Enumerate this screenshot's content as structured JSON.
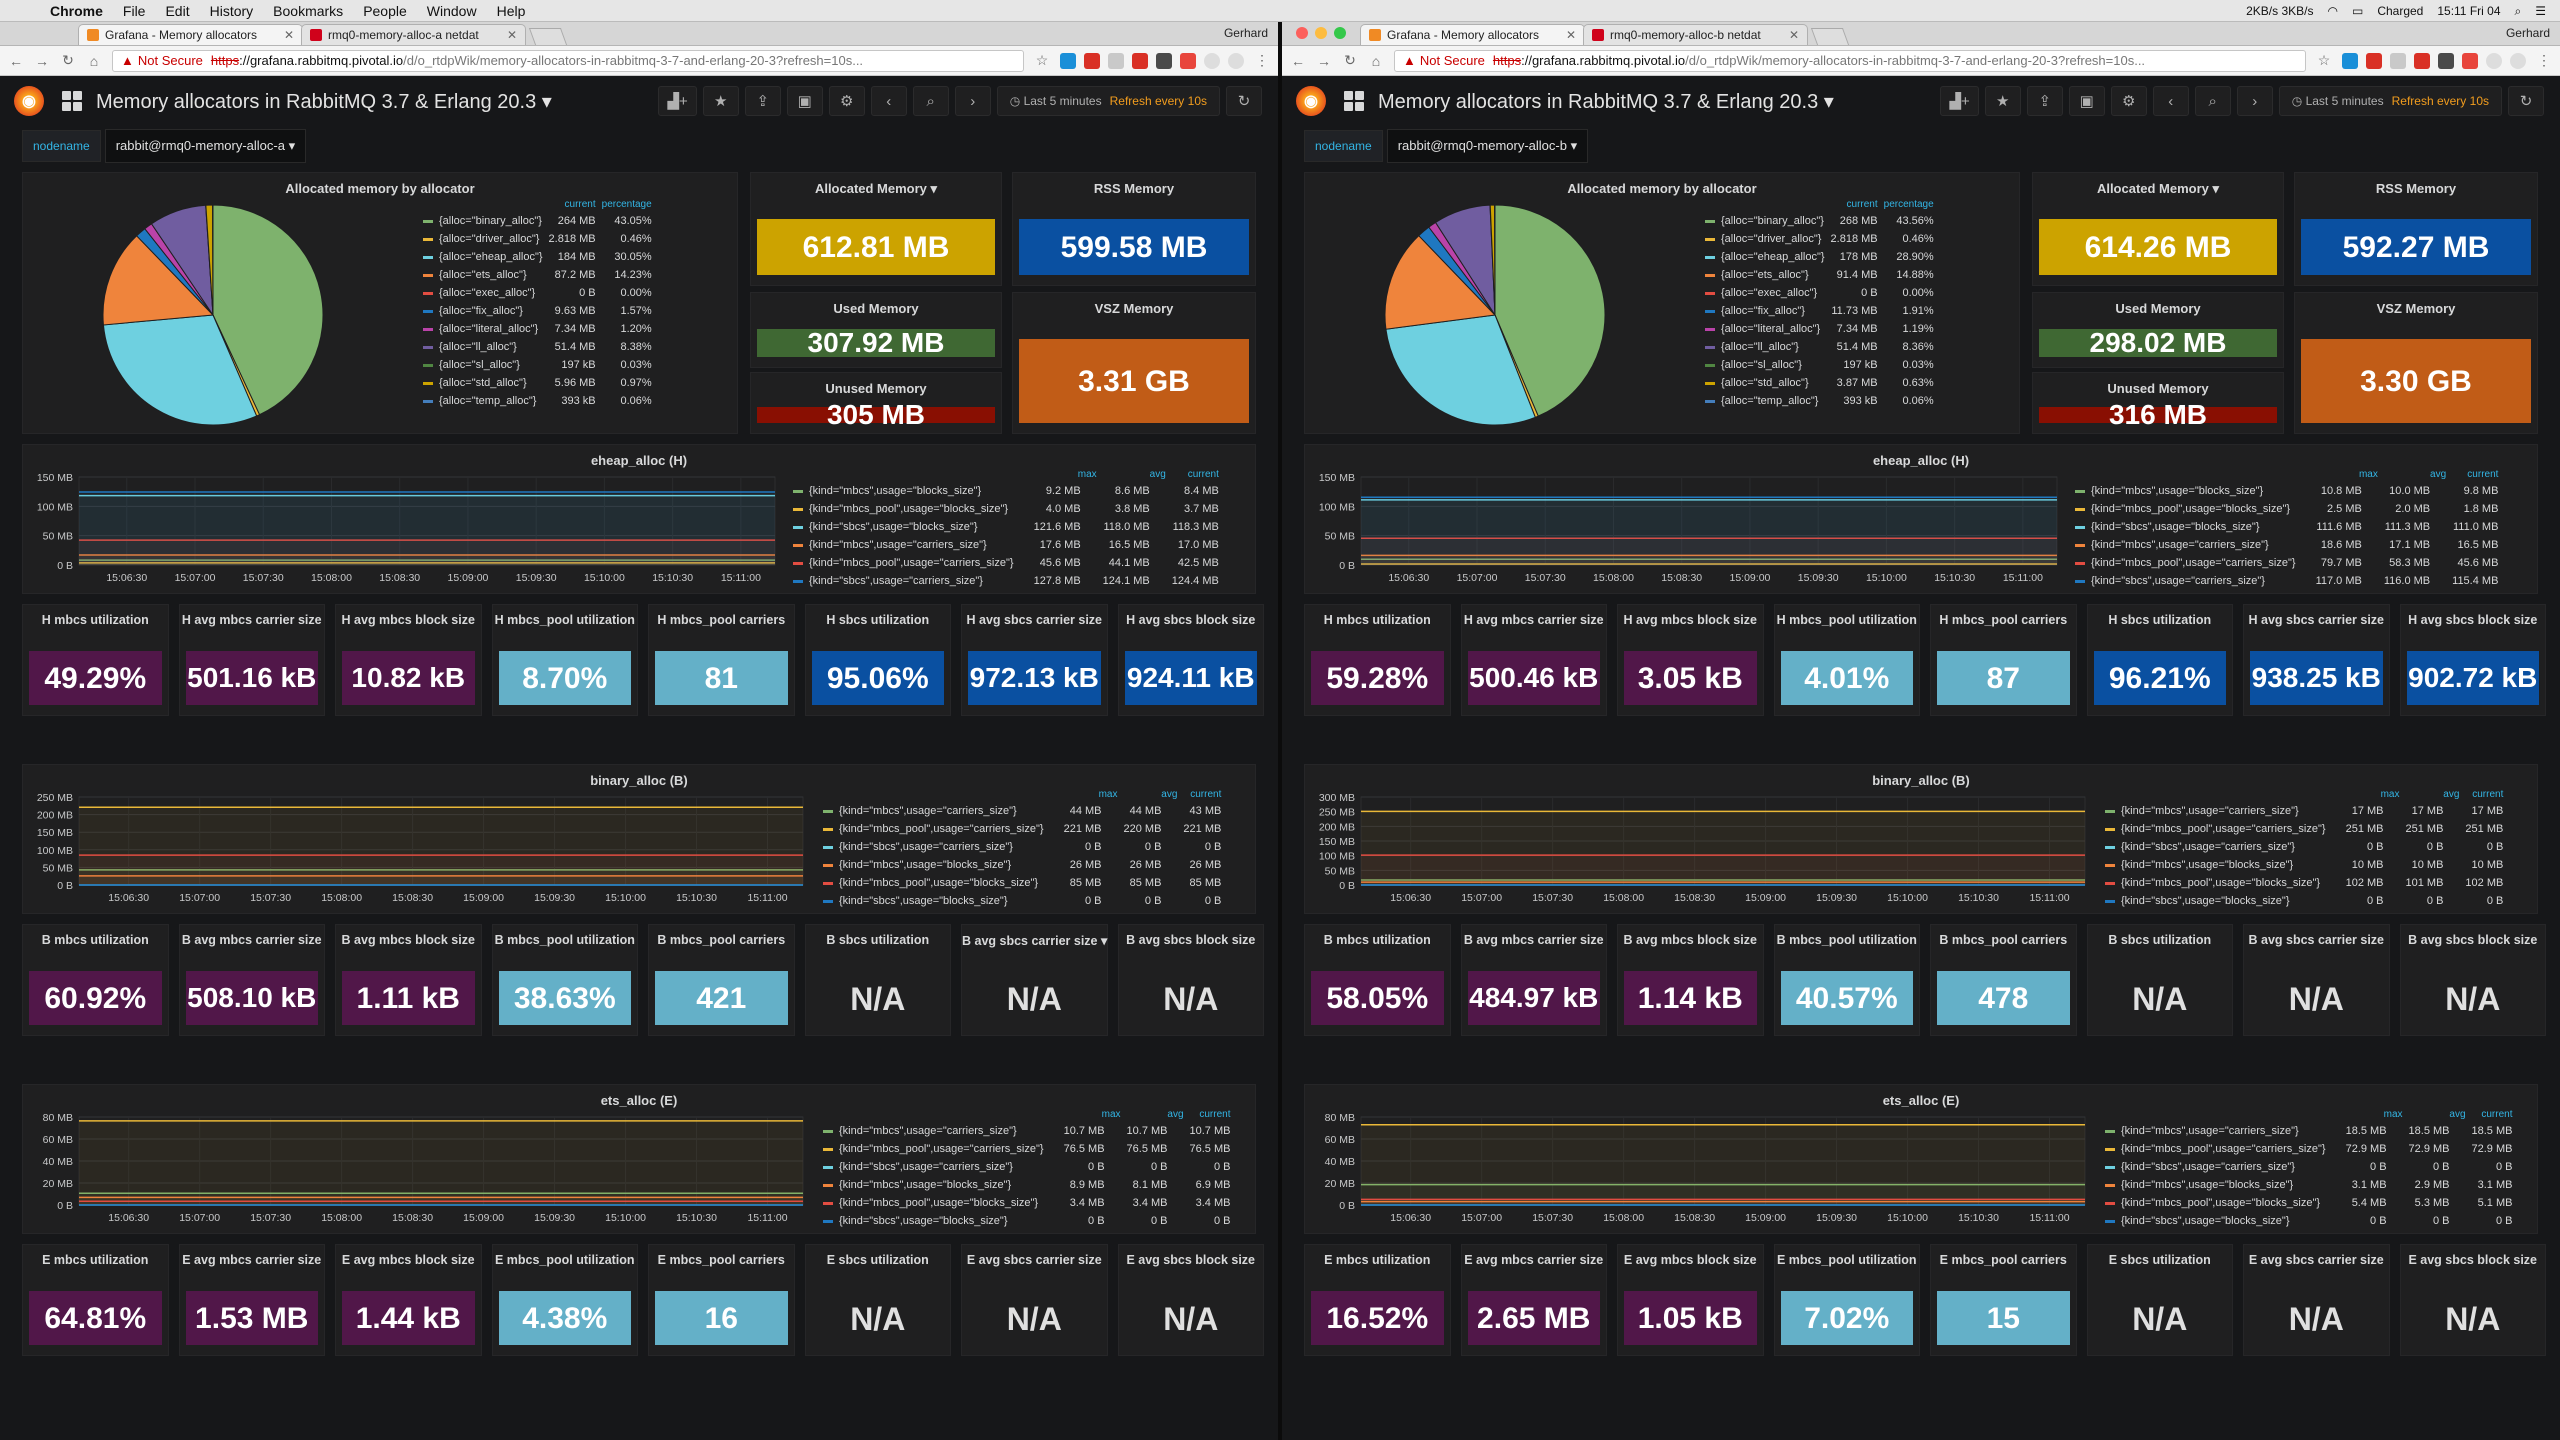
{
  "menubar": {
    "apple": "",
    "items": [
      "Chrome",
      "File",
      "Edit",
      "History",
      "Bookmarks",
      "People",
      "Window",
      "Help"
    ],
    "status": [
      "2KB/s 3KB/s",
      "Charged",
      "15:11 Fri 04"
    ]
  },
  "browser": {
    "ns": "Not Secure",
    "scheme": "https",
    "host": "://grafana.rabbitmq.pivotal.io",
    "path": "/d/o_rtdpWik/memory-allocators-in-rabbitmq-3-7-and-erlang-20-3?refresh=10s...",
    "user": "Gerhard"
  },
  "dashboard": {
    "title": "Memory allocators in RabbitMQ 3.7 & Erlang 20.3 ▾",
    "range": "Last 5 minutes",
    "refresh": "Refresh every 10s",
    "var_label": "nodename",
    "times": [
      "15:06:30",
      "15:07:00",
      "15:07:30",
      "15:08:00",
      "15:08:30",
      "15:09:00",
      "15:09:30",
      "15:10:00",
      "15:10:30",
      "15:11:00"
    ]
  },
  "colors": {
    "green": "#7eb26d",
    "yellow": "#eab839",
    "cyan": "#6ed0e0",
    "orange": "#ef843c",
    "red": "#e24d42",
    "blue": "#1f78c1",
    "purple": "#ba43a9",
    "dpurple": "#705da0",
    "statYellow": "#cca300",
    "statBlue": "#0a50a1",
    "statGreen": "#3f6833",
    "statOrange": "#c15c17",
    "statRed": "#890f02",
    "statPurple": "#511749",
    "statCyan": "#64b0c8"
  },
  "titles": {
    "pie": "Allocated memory by allocator",
    "alloc": "Allocated Memory ▾",
    "rss": "RSS Memory",
    "used": "Used Memory",
    "vsz": "VSZ Memory",
    "unused": "Unused Memory",
    "eheap": "eheap_alloc (H)",
    "binary": "binary_alloc (B)",
    "ets": "ets_alloc (E)",
    "lg_max": "max",
    "lg_avg": "avg",
    "lg_cur": "current",
    "pie_cur": "current",
    "pie_pct": "percentage"
  },
  "win": [
    {
      "tab1": "Grafana - Memory allocators",
      "tab2": "rmq0-memory-alloc-a netdat",
      "node": "rabbit@rmq0-memory-alloc-a ▾",
      "pie": [
        [
          "{alloc=\"binary_alloc\"}",
          "264 MB",
          "43.05%"
        ],
        [
          "{alloc=\"driver_alloc\"}",
          "2.818 MB",
          "0.46%"
        ],
        [
          "{alloc=\"eheap_alloc\"}",
          "184 MB",
          "30.05%"
        ],
        [
          "{alloc=\"ets_alloc\"}",
          "87.2 MB",
          "14.23%"
        ],
        [
          "{alloc=\"exec_alloc\"}",
          "0 B",
          "0.00%"
        ],
        [
          "{alloc=\"fix_alloc\"}",
          "9.63 MB",
          "1.57%"
        ],
        [
          "{alloc=\"literal_alloc\"}",
          "7.34 MB",
          "1.20%"
        ],
        [
          "{alloc=\"ll_alloc\"}",
          "51.4 MB",
          "8.38%"
        ],
        [
          "{alloc=\"sl_alloc\"}",
          "197 kB",
          "0.03%"
        ],
        [
          "{alloc=\"std_alloc\"}",
          "5.96 MB",
          "0.97%"
        ],
        [
          "{alloc=\"temp_alloc\"}",
          "393 kB",
          "0.06%"
        ]
      ],
      "stats": {
        "alloc": "612.81 MB",
        "rss": "599.58 MB",
        "used": "307.92 MB",
        "vsz": "3.31 GB",
        "unused": "305 MB"
      },
      "eheap": {
        "yt": [
          "150 MB",
          "100 MB",
          "50 MB",
          "0 B"
        ],
        "ymax": 150,
        "lg": [
          [
            "{kind=\"mbcs\",usage=\"blocks_size\"}",
            "9.2 MB",
            "8.6 MB",
            "8.4 MB"
          ],
          [
            "{kind=\"mbcs_pool\",usage=\"blocks_size\"}",
            "4.0 MB",
            "3.8 MB",
            "3.7 MB"
          ],
          [
            "{kind=\"sbcs\",usage=\"blocks_size\"}",
            "121.6 MB",
            "118.0 MB",
            "118.3 MB"
          ],
          [
            "{kind=\"mbcs\",usage=\"carriers_size\"}",
            "17.6 MB",
            "16.5 MB",
            "17.0 MB"
          ],
          [
            "{kind=\"mbcs_pool\",usage=\"carriers_size\"}",
            "45.6 MB",
            "44.1 MB",
            "42.5 MB"
          ],
          [
            "{kind=\"sbcs\",usage=\"carriers_size\"}",
            "127.8 MB",
            "124.1 MB",
            "124.4 MB"
          ]
        ]
      },
      "hstats": [
        [
          "H mbcs utilization",
          "49.29%"
        ],
        [
          "H avg mbcs carrier size",
          "501.16 kB"
        ],
        [
          "H avg mbcs block size",
          "10.82 kB"
        ],
        [
          "H mbcs_pool utilization",
          "8.70%"
        ],
        [
          "H mbcs_pool carriers",
          "81"
        ],
        [
          "H sbcs utilization",
          "95.06%"
        ],
        [
          "H avg sbcs carrier size",
          "972.13 kB"
        ],
        [
          "H avg sbcs block size",
          "924.11 kB"
        ]
      ],
      "binary": {
        "yt": [
          "250 MB",
          "200 MB",
          "150 MB",
          "100 MB",
          "50 MB",
          "0 B"
        ],
        "ymax": 250,
        "lg": [
          [
            "{kind=\"mbcs\",usage=\"carriers_size\"}",
            "44 MB",
            "44 MB",
            "43 MB"
          ],
          [
            "{kind=\"mbcs_pool\",usage=\"carriers_size\"}",
            "221 MB",
            "220 MB",
            "221 MB"
          ],
          [
            "{kind=\"sbcs\",usage=\"carriers_size\"}",
            "0 B",
            "0 B",
            "0 B"
          ],
          [
            "{kind=\"mbcs\",usage=\"blocks_size\"}",
            "26 MB",
            "26 MB",
            "26 MB"
          ],
          [
            "{kind=\"mbcs_pool\",usage=\"blocks_size\"}",
            "85 MB",
            "85 MB",
            "85 MB"
          ],
          [
            "{kind=\"sbcs\",usage=\"blocks_size\"}",
            "0 B",
            "0 B",
            "0 B"
          ]
        ]
      },
      "bstats": [
        [
          "B mbcs utilization",
          "60.92%"
        ],
        [
          "B avg mbcs carrier size",
          "508.10 kB"
        ],
        [
          "B avg mbcs block size",
          "1.11 kB"
        ],
        [
          "B mbcs_pool utilization",
          "38.63%"
        ],
        [
          "B mbcs_pool carriers",
          "421"
        ],
        [
          "B sbcs utilization",
          "N/A"
        ],
        [
          "B avg sbcs carrier size ▾",
          "N/A"
        ],
        [
          "B avg sbcs block size",
          "N/A"
        ]
      ],
      "ets": {
        "yt": [
          "80 MB",
          "60 MB",
          "40 MB",
          "20 MB",
          "0 B"
        ],
        "ymax": 80,
        "lg": [
          [
            "{kind=\"mbcs\",usage=\"carriers_size\"}",
            "10.7 MB",
            "10.7 MB",
            "10.7 MB"
          ],
          [
            "{kind=\"mbcs_pool\",usage=\"carriers_size\"}",
            "76.5 MB",
            "76.5 MB",
            "76.5 MB"
          ],
          [
            "{kind=\"sbcs\",usage=\"carriers_size\"}",
            "0 B",
            "0 B",
            "0 B"
          ],
          [
            "{kind=\"mbcs\",usage=\"blocks_size\"}",
            "8.9 MB",
            "8.1 MB",
            "6.9 MB"
          ],
          [
            "{kind=\"mbcs_pool\",usage=\"blocks_size\"}",
            "3.4 MB",
            "3.4 MB",
            "3.4 MB"
          ],
          [
            "{kind=\"sbcs\",usage=\"blocks_size\"}",
            "0 B",
            "0 B",
            "0 B"
          ]
        ]
      },
      "estats": [
        [
          "E mbcs utilization",
          "64.81%"
        ],
        [
          "E avg mbcs carrier size",
          "1.53 MB"
        ],
        [
          "E avg mbcs block size",
          "1.44 kB"
        ],
        [
          "E mbcs_pool utilization",
          "4.38%"
        ],
        [
          "E mbcs_pool carriers",
          "16"
        ],
        [
          "E sbcs utilization",
          "N/A"
        ],
        [
          "E avg sbcs carrier size",
          "N/A"
        ],
        [
          "E avg sbcs block size",
          "N/A"
        ]
      ]
    },
    {
      "tab1": "Grafana - Memory allocators",
      "tab2": "rmq0-memory-alloc-b netdat",
      "node": "rabbit@rmq0-memory-alloc-b ▾",
      "pie": [
        [
          "{alloc=\"binary_alloc\"}",
          "268 MB",
          "43.56%"
        ],
        [
          "{alloc=\"driver_alloc\"}",
          "2.818 MB",
          "0.46%"
        ],
        [
          "{alloc=\"eheap_alloc\"}",
          "178 MB",
          "28.90%"
        ],
        [
          "{alloc=\"ets_alloc\"}",
          "91.4 MB",
          "14.88%"
        ],
        [
          "{alloc=\"exec_alloc\"}",
          "0 B",
          "0.00%"
        ],
        [
          "{alloc=\"fix_alloc\"}",
          "11.73 MB",
          "1.91%"
        ],
        [
          "{alloc=\"literal_alloc\"}",
          "7.34 MB",
          "1.19%"
        ],
        [
          "{alloc=\"ll_alloc\"}",
          "51.4 MB",
          "8.36%"
        ],
        [
          "{alloc=\"sl_alloc\"}",
          "197 kB",
          "0.03%"
        ],
        [
          "{alloc=\"std_alloc\"}",
          "3.87 MB",
          "0.63%"
        ],
        [
          "{alloc=\"temp_alloc\"}",
          "393 kB",
          "0.06%"
        ]
      ],
      "stats": {
        "alloc": "614.26 MB",
        "rss": "592.27 MB",
        "used": "298.02 MB",
        "vsz": "3.30 GB",
        "unused": "316 MB"
      },
      "eheap": {
        "yt": [
          "150 MB",
          "100 MB",
          "50 MB",
          "0 B"
        ],
        "ymax": 150,
        "lg": [
          [
            "{kind=\"mbcs\",usage=\"blocks_size\"}",
            "10.8 MB",
            "10.0 MB",
            "9.8 MB"
          ],
          [
            "{kind=\"mbcs_pool\",usage=\"blocks_size\"}",
            "2.5 MB",
            "2.0 MB",
            "1.8 MB"
          ],
          [
            "{kind=\"sbcs\",usage=\"blocks_size\"}",
            "111.6 MB",
            "111.3 MB",
            "111.0 MB"
          ],
          [
            "{kind=\"mbcs\",usage=\"carriers_size\"}",
            "18.6 MB",
            "17.1 MB",
            "16.5 MB"
          ],
          [
            "{kind=\"mbcs_pool\",usage=\"carriers_size\"}",
            "79.7 MB",
            "58.3 MB",
            "45.6 MB"
          ],
          [
            "{kind=\"sbcs\",usage=\"carriers_size\"}",
            "117.0 MB",
            "116.0 MB",
            "115.4 MB"
          ]
        ]
      },
      "hstats": [
        [
          "H mbcs utilization",
          "59.28%"
        ],
        [
          "H avg mbcs carrier size",
          "500.46 kB"
        ],
        [
          "H avg mbcs block size",
          "3.05 kB"
        ],
        [
          "H mbcs_pool utilization",
          "4.01%"
        ],
        [
          "H mbcs_pool carriers",
          "87"
        ],
        [
          "H sbcs utilization",
          "96.21%"
        ],
        [
          "H avg sbcs carrier size",
          "938.25 kB"
        ],
        [
          "H avg sbcs block size",
          "902.72 kB"
        ]
      ],
      "binary": {
        "yt": [
          "300 MB",
          "250 MB",
          "200 MB",
          "150 MB",
          "100 MB",
          "50 MB",
          "0 B"
        ],
        "ymax": 300,
        "lg": [
          [
            "{kind=\"mbcs\",usage=\"carriers_size\"}",
            "17 MB",
            "17 MB",
            "17 MB"
          ],
          [
            "{kind=\"mbcs_pool\",usage=\"carriers_size\"}",
            "251 MB",
            "251 MB",
            "251 MB"
          ],
          [
            "{kind=\"sbcs\",usage=\"carriers_size\"}",
            "0 B",
            "0 B",
            "0 B"
          ],
          [
            "{kind=\"mbcs\",usage=\"blocks_size\"}",
            "10 MB",
            "10 MB",
            "10 MB"
          ],
          [
            "{kind=\"mbcs_pool\",usage=\"blocks_size\"}",
            "102 MB",
            "101 MB",
            "102 MB"
          ],
          [
            "{kind=\"sbcs\",usage=\"blocks_size\"}",
            "0 B",
            "0 B",
            "0 B"
          ]
        ]
      },
      "bstats": [
        [
          "B mbcs utilization",
          "58.05%"
        ],
        [
          "B avg mbcs carrier size",
          "484.97 kB"
        ],
        [
          "B avg mbcs block size",
          "1.14 kB"
        ],
        [
          "B mbcs_pool utilization",
          "40.57%"
        ],
        [
          "B mbcs_pool carriers",
          "478"
        ],
        [
          "B sbcs utilization",
          "N/A"
        ],
        [
          "B avg sbcs carrier size",
          "N/A"
        ],
        [
          "B avg sbcs block size",
          "N/A"
        ]
      ],
      "ets": {
        "yt": [
          "80 MB",
          "60 MB",
          "40 MB",
          "20 MB",
          "0 B"
        ],
        "ymax": 80,
        "lg": [
          [
            "{kind=\"mbcs\",usage=\"carriers_size\"}",
            "18.5 MB",
            "18.5 MB",
            "18.5 MB"
          ],
          [
            "{kind=\"mbcs_pool\",usage=\"carriers_size\"}",
            "72.9 MB",
            "72.9 MB",
            "72.9 MB"
          ],
          [
            "{kind=\"sbcs\",usage=\"carriers_size\"}",
            "0 B",
            "0 B",
            "0 B"
          ],
          [
            "{kind=\"mbcs\",usage=\"blocks_size\"}",
            "3.1 MB",
            "2.9 MB",
            "3.1 MB"
          ],
          [
            "{kind=\"mbcs_pool\",usage=\"blocks_size\"}",
            "5.4 MB",
            "5.3 MB",
            "5.1 MB"
          ],
          [
            "{kind=\"sbcs\",usage=\"blocks_size\"}",
            "0 B",
            "0 B",
            "0 B"
          ]
        ]
      },
      "estats": [
        [
          "E mbcs utilization",
          "16.52%"
        ],
        [
          "E avg mbcs carrier size",
          "2.65 MB"
        ],
        [
          "E avg mbcs block size",
          "1.05 kB"
        ],
        [
          "E mbcs_pool utilization",
          "7.02%"
        ],
        [
          "E mbcs_pool carriers",
          "15"
        ],
        [
          "E sbcs utilization",
          "N/A"
        ],
        [
          "E avg sbcs carrier size",
          "N/A"
        ],
        [
          "E avg sbcs block size",
          "N/A"
        ]
      ]
    }
  ]
}
